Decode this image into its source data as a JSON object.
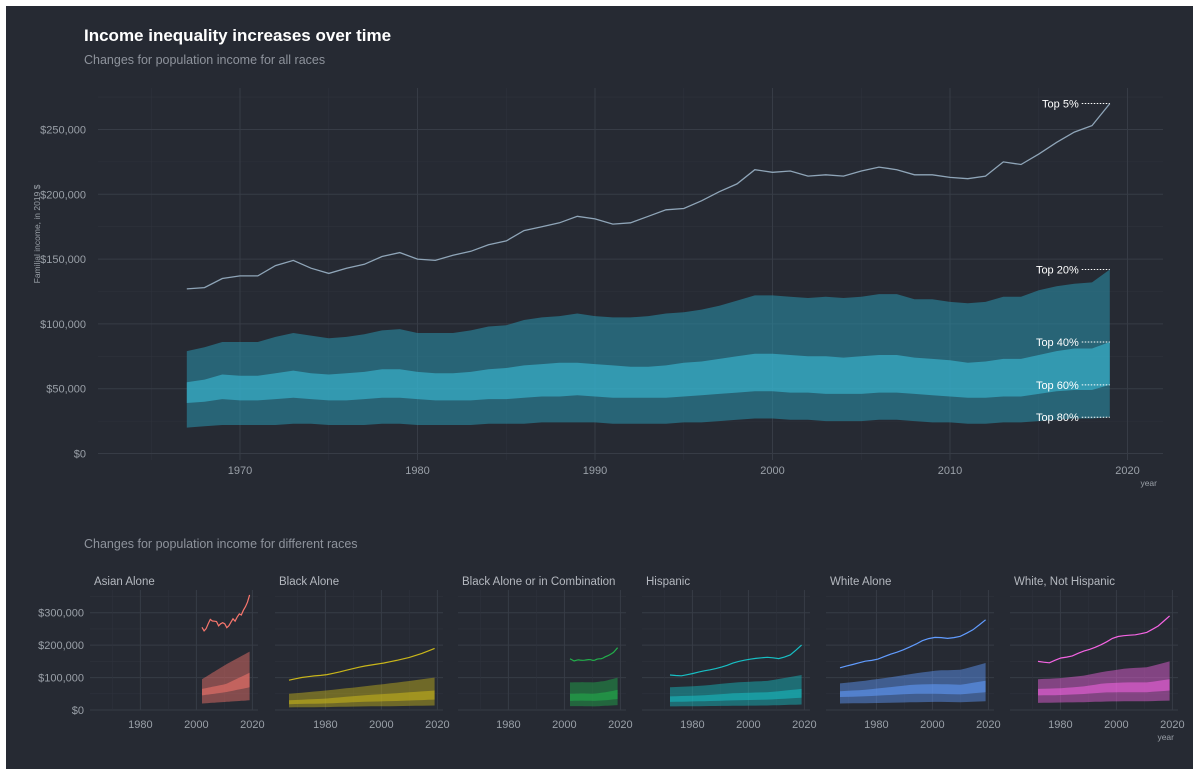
{
  "title": "Income inequality increases over time",
  "subtitle": "Changes for population income for all races",
  "subtitle2": "Changes for population income for different races",
  "colors": {
    "background": "#262a33",
    "main_band": "#2a93ad",
    "main_line": "#8fa5b8",
    "asian": "#f8766d",
    "black": "#c9b61a",
    "black_combo": "#22b04b",
    "hispanic": "#17bfc4",
    "white": "#619cff",
    "white_nh": "#f564e3"
  },
  "chart_data": [
    {
      "type": "area",
      "name": "main",
      "ylabel": "Familial income, in 2019 $",
      "xlabel": "year",
      "xlim": [
        1962,
        2022
      ],
      "ylim": [
        -5000,
        282000
      ],
      "x_ticks": [
        1970,
        1980,
        1990,
        2000,
        2010,
        2020
      ],
      "y_ticks": [
        0,
        50000,
        100000,
        150000,
        200000,
        250000
      ],
      "y_tick_labels": [
        "$0",
        "$50,000",
        "$100,000",
        "$150,000",
        "$200,000",
        "$250,000"
      ],
      "x_tick_labels": [
        "1970",
        "1980",
        "1990",
        "2000",
        "2010",
        "2020"
      ],
      "grid": true,
      "x": [
        1967,
        1968,
        1969,
        1970,
        1971,
        1972,
        1973,
        1974,
        1975,
        1976,
        1977,
        1978,
        1979,
        1980,
        1981,
        1982,
        1983,
        1984,
        1985,
        1986,
        1987,
        1988,
        1989,
        1990,
        1991,
        1992,
        1993,
        1994,
        1995,
        1996,
        1997,
        1998,
        1999,
        2000,
        2001,
        2002,
        2003,
        2004,
        2005,
        2006,
        2007,
        2008,
        2009,
        2010,
        2011,
        2012,
        2013,
        2014,
        2015,
        2016,
        2017,
        2018,
        2019
      ],
      "series": [
        {
          "name": "Top 5%",
          "values": [
            127000,
            128000,
            135000,
            137000,
            137000,
            145000,
            149000,
            143000,
            139000,
            143000,
            146000,
            152000,
            155000,
            150000,
            149000,
            153000,
            156000,
            161000,
            164000,
            172000,
            175000,
            178000,
            183000,
            181000,
            177000,
            178000,
            183000,
            188000,
            189000,
            195000,
            202000,
            208000,
            219000,
            217000,
            218000,
            214000,
            215000,
            214000,
            218000,
            221000,
            219000,
            215000,
            215000,
            213000,
            212000,
            214000,
            225000,
            223000,
            231000,
            240000,
            248000,
            253000,
            270000
          ]
        },
        {
          "name": "Top 20%",
          "values": [
            79000,
            82000,
            86000,
            86000,
            86000,
            90000,
            93000,
            91000,
            89000,
            90000,
            92000,
            95000,
            96000,
            93000,
            93000,
            93000,
            95000,
            98000,
            99000,
            103000,
            105000,
            106000,
            108000,
            106000,
            105000,
            105000,
            106000,
            108000,
            109000,
            111000,
            114000,
            118000,
            122000,
            122000,
            121000,
            120000,
            121000,
            120000,
            121000,
            123000,
            123000,
            119000,
            119000,
            117000,
            116000,
            117000,
            121000,
            121000,
            126000,
            129000,
            131000,
            132000,
            142000
          ]
        },
        {
          "name": "Top 40%",
          "values": [
            55000,
            57000,
            61000,
            60000,
            60000,
            62000,
            64000,
            62000,
            61000,
            62000,
            63000,
            65000,
            65000,
            63000,
            62000,
            62000,
            63000,
            65000,
            66000,
            68000,
            69000,
            70000,
            70000,
            69000,
            68000,
            67000,
            67000,
            68000,
            70000,
            71000,
            73000,
            75000,
            77000,
            77000,
            76000,
            75000,
            75000,
            74000,
            75000,
            76000,
            76000,
            74000,
            73000,
            72000,
            70000,
            71000,
            73000,
            73000,
            76000,
            79000,
            81000,
            81000,
            86000
          ]
        },
        {
          "name": "Top 60%",
          "values": [
            39000,
            40000,
            42000,
            41000,
            41000,
            42000,
            43000,
            42000,
            41000,
            41000,
            42000,
            43000,
            43000,
            42000,
            41000,
            41000,
            41000,
            42000,
            42000,
            43000,
            44000,
            44000,
            45000,
            44000,
            43000,
            43000,
            43000,
            43000,
            44000,
            45000,
            46000,
            47000,
            48000,
            48000,
            47000,
            47000,
            46000,
            46000,
            46000,
            47000,
            47000,
            46000,
            45000,
            44000,
            43000,
            43000,
            44000,
            44000,
            46000,
            48000,
            49000,
            49000,
            53000
          ]
        },
        {
          "name": "Top 80%",
          "values": [
            20000,
            21000,
            22000,
            22000,
            22000,
            22000,
            23000,
            23000,
            22000,
            22000,
            22000,
            23000,
            23000,
            22000,
            22000,
            22000,
            22000,
            23000,
            23000,
            23000,
            24000,
            24000,
            24000,
            24000,
            23000,
            23000,
            23000,
            23000,
            24000,
            24000,
            25000,
            26000,
            27000,
            27000,
            26000,
            26000,
            25000,
            25000,
            25000,
            26000,
            26000,
            25000,
            24000,
            24000,
            23000,
            23000,
            24000,
            24000,
            25000,
            26000,
            27000,
            27000,
            28000
          ]
        }
      ],
      "annotations": [
        "Top 5%",
        "Top 20%",
        "Top 40%",
        "Top 60%",
        "Top 80%"
      ]
    },
    {
      "type": "area",
      "name": "facets",
      "xlim": [
        1962,
        2022
      ],
      "ylim": [
        0,
        370000
      ],
      "x_ticks": [
        1980,
        2000,
        2020
      ],
      "x_tick_labels": [
        "1980",
        "2000",
        "2020"
      ],
      "y_ticks": [
        0,
        100000,
        200000,
        300000
      ],
      "y_tick_labels": [
        "$0",
        "$100,000",
        "$200,000",
        "$300,000"
      ],
      "xlabel": "year",
      "panels": [
        {
          "name": "Asian Alone",
          "color": "#f8766d",
          "start": 2002,
          "end": 2019,
          "top": [
            255000,
            240000,
            262000,
            280000,
            272000,
            276000,
            258000,
            270000,
            268000,
            252000,
            265000,
            282000,
            272000,
            298000,
            292000,
            312000,
            325000,
            355000
          ],
          "q20": [
            95000,
            140000,
            180000
          ],
          "q40": [
            65000,
            80000,
            115000
          ],
          "q60": [
            45000,
            55000,
            70000
          ],
          "q80": [
            20000,
            25000,
            30000
          ]
        },
        {
          "name": "Black Alone",
          "color": "#c9b61a",
          "start": 1967,
          "end": 2019,
          "top": [
            92000,
            100000,
            105000,
            108000,
            116000,
            125000,
            134000,
            140000,
            146000,
            154000,
            163000,
            175000,
            190000
          ],
          "q20": [
            50000,
            60000,
            72000,
            85000,
            100000
          ],
          "q40": [
            30000,
            35000,
            45000,
            52000,
            60000
          ],
          "q60": [
            18000,
            20000,
            25000,
            28000,
            32000
          ],
          "q80": [
            8000,
            9000,
            11000,
            12000,
            14000
          ]
        },
        {
          "name": "Black Alone or in Combination",
          "color": "#22b04b",
          "start": 2002,
          "end": 2019,
          "top": [
            158000,
            151000,
            155000,
            153000,
            154000,
            156000,
            152000,
            158000,
            158000,
            165000,
            170000,
            178000,
            192000
          ],
          "q20": [
            85000,
            86000,
            85000,
            90000,
            100000
          ],
          "q40": [
            50000,
            51000,
            50000,
            55000,
            62000
          ],
          "q60": [
            28000,
            29000,
            28000,
            30000,
            34000
          ],
          "q80": [
            12000,
            12000,
            11000,
            13000,
            15000
          ]
        },
        {
          "name": "Hispanic",
          "color": "#17bfc4",
          "start": 1972,
          "end": 2019,
          "top": [
            108000,
            105000,
            112000,
            120000,
            126000,
            135000,
            148000,
            155000,
            160000,
            163000,
            158000,
            170000,
            200000
          ],
          "q20": [
            70000,
            75000,
            85000,
            90000,
            108000
          ],
          "q40": [
            42000,
            45000,
            52000,
            55000,
            65000
          ],
          "q60": [
            25000,
            27000,
            30000,
            32000,
            38000
          ],
          "q80": [
            11000,
            12000,
            13000,
            14000,
            17000
          ]
        },
        {
          "name": "White Alone",
          "color": "#619cff",
          "start": 1967,
          "end": 2019,
          "top": [
            130000,
            140000,
            150000,
            155000,
            170000,
            182000,
            198000,
            218000,
            225000,
            220000,
            228000,
            248000,
            278000
          ],
          "q20": [
            82000,
            90000,
            100000,
            112000,
            122000,
            124000,
            145000
          ],
          "q40": [
            58000,
            62000,
            70000,
            78000,
            80000,
            78000,
            90000
          ],
          "q60": [
            40000,
            42000,
            46000,
            50000,
            50000,
            48000,
            55000
          ],
          "q80": [
            20000,
            21000,
            22000,
            24000,
            25000,
            24000,
            27000
          ]
        },
        {
          "name": "White, Not Hispanic",
          "color": "#f564e3",
          "start": 1972,
          "end": 2019,
          "top": [
            150000,
            145000,
            160000,
            165000,
            180000,
            190000,
            205000,
            225000,
            230000,
            232000,
            240000,
            260000,
            290000
          ],
          "q20": [
            95000,
            98000,
            105000,
            118000,
            128000,
            132000,
            150000
          ],
          "q40": [
            65000,
            67000,
            72000,
            82000,
            85000,
            85000,
            95000
          ],
          "q60": [
            45000,
            46000,
            49000,
            54000,
            55000,
            55000,
            60000
          ],
          "q80": [
            22000,
            23000,
            24000,
            26000,
            27000,
            27000,
            29000
          ]
        }
      ]
    }
  ]
}
